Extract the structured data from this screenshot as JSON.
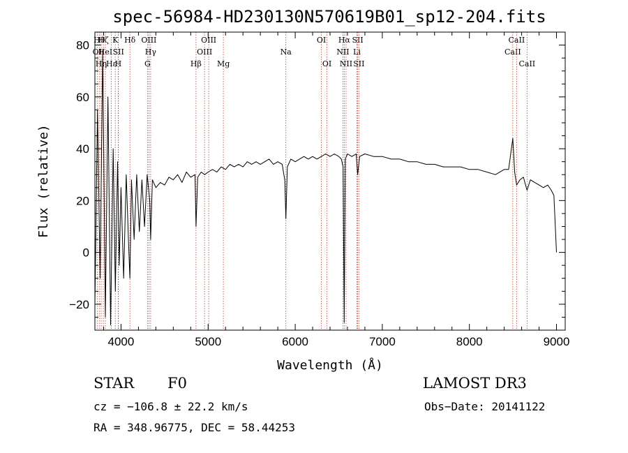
{
  "chart_data": {
    "type": "line",
    "title": "spec-56984-HD230130N570619B01_sp12-204.fits",
    "xlabel": "Wavelength (Å)",
    "ylabel": "Flux (relative)",
    "xlim": [
      3700,
      9100
    ],
    "ylim": [
      -30,
      85
    ],
    "x_ticks": [
      4000,
      5000,
      6000,
      7000,
      8000,
      9000
    ],
    "y_ticks": [
      -20,
      0,
      20,
      40,
      60,
      80
    ],
    "x_tick_labels": [
      "4000",
      "5000",
      "6000",
      "7000",
      "8000",
      "9000"
    ],
    "y_tick_labels": [
      "−20",
      "0",
      "20",
      "40",
      "60",
      "80"
    ],
    "series": [
      {
        "name": "spectrum",
        "x": [
          3700,
          3730,
          3760,
          3790,
          3820,
          3850,
          3880,
          3910,
          3935,
          3960,
          3980,
          4000,
          4030,
          4060,
          4090,
          4102,
          4120,
          4150,
          4180,
          4210,
          4240,
          4270,
          4300,
          4330,
          4340,
          4360,
          4400,
          4450,
          4500,
          4550,
          4600,
          4650,
          4700,
          4750,
          4800,
          4850,
          4861,
          4880,
          4920,
          4960,
          5000,
          5050,
          5100,
          5150,
          5200,
          5250,
          5300,
          5350,
          5400,
          5450,
          5500,
          5550,
          5600,
          5650,
          5700,
          5750,
          5800,
          5850,
          5880,
          5893,
          5910,
          5950,
          6000,
          6050,
          6100,
          6150,
          6200,
          6250,
          6300,
          6350,
          6400,
          6450,
          6500,
          6530,
          6550,
          6563,
          6575,
          6600,
          6650,
          6700,
          6717,
          6740,
          6800,
          6900,
          7000,
          7100,
          7200,
          7300,
          7400,
          7500,
          7600,
          7700,
          7800,
          7900,
          8000,
          8100,
          8200,
          8300,
          8400,
          8450,
          8498,
          8520,
          8542,
          8580,
          8620,
          8662,
          8700,
          8750,
          8800,
          8850,
          8900,
          8940,
          8970,
          9000
        ],
        "y": [
          -20,
          55,
          -10,
          78,
          -25,
          60,
          -28,
          40,
          -15,
          35,
          -5,
          25,
          -10,
          30,
          0,
          -10,
          28,
          5,
          30,
          8,
          28,
          10,
          30,
          20,
          5,
          28,
          25,
          27,
          26,
          29,
          28,
          30,
          27,
          31,
          29,
          30,
          10,
          29,
          31,
          30,
          31,
          32,
          31,
          33,
          32,
          34,
          33,
          34,
          33,
          35,
          34,
          35,
          34,
          35,
          36,
          34,
          35,
          34,
          28,
          13,
          33,
          36,
          35,
          36,
          37,
          36,
          37,
          36,
          37,
          38,
          37,
          38,
          37,
          36,
          33,
          -27,
          36,
          38,
          37,
          38,
          30,
          37,
          38,
          37,
          37,
          36,
          36,
          35,
          35,
          34,
          34,
          33,
          33,
          33,
          32,
          32,
          31,
          30,
          32,
          32,
          44,
          31,
          26,
          28,
          29,
          24,
          28,
          27,
          26,
          25,
          26,
          24,
          22,
          0
        ]
      }
    ],
    "spectral_lines": [
      {
        "label": "OI",
        "x": 3727,
        "row": 2
      },
      {
        "label": "Hθ",
        "x": 3750,
        "row": 1
      },
      {
        "label": "Hη",
        "x": 3772,
        "row": 3
      },
      {
        "label": "Hζ",
        "x": 3797,
        "row": 1
      },
      {
        "label": "HeI",
        "x": 3820,
        "row": 2
      },
      {
        "label": "Hε",
        "x": 3889,
        "row": 3
      },
      {
        "label": "K",
        "x": 3934,
        "row": 1
      },
      {
        "label": "SII",
        "x": 3970,
        "row": 2
      },
      {
        "label": "H",
        "x": 3968,
        "row": 3
      },
      {
        "label": "Hδ",
        "x": 4102,
        "row": 1
      },
      {
        "label": "OIII",
        "x": 4320,
        "row": 1
      },
      {
        "label": "Hγ",
        "x": 4340,
        "row": 2
      },
      {
        "label": "G",
        "x": 4304,
        "row": 3
      },
      {
        "label": "Hβ",
        "x": 4861,
        "row": 3
      },
      {
        "label": "OIII",
        "x": 4959,
        "row": 2
      },
      {
        "label": "OIII",
        "x": 5007,
        "row": 1
      },
      {
        "label": "Mg",
        "x": 5175,
        "row": 3
      },
      {
        "label": "Na",
        "x": 5893,
        "row": 2
      },
      {
        "label": "OI",
        "x": 6300,
        "row": 1
      },
      {
        "label": "OI",
        "x": 6364,
        "row": 3
      },
      {
        "label": "Hα",
        "x": 6563,
        "row": 1
      },
      {
        "label": "NII",
        "x": 6548,
        "row": 2
      },
      {
        "label": "NII",
        "x": 6584,
        "row": 3
      },
      {
        "label": "SII",
        "x": 6717,
        "row": 1
      },
      {
        "label": "Li",
        "x": 6708,
        "row": 2
      },
      {
        "label": "SII",
        "x": 6731,
        "row": 3
      },
      {
        "label": "CaII",
        "x": 8498,
        "row": 2
      },
      {
        "label": "CaII",
        "x": 8542,
        "row": 1
      },
      {
        "label": "CaII",
        "x": 8662,
        "row": 3
      }
    ]
  },
  "info": {
    "object_class": "STAR",
    "subclass": "F0",
    "survey": "LAMOST DR3",
    "redshift": "cz = −106.8 ± 22.2 km/s",
    "obs_date": "Obs−Date: 20141122",
    "coordinates": "RA = 348.96775, DEC =  58.44253"
  }
}
